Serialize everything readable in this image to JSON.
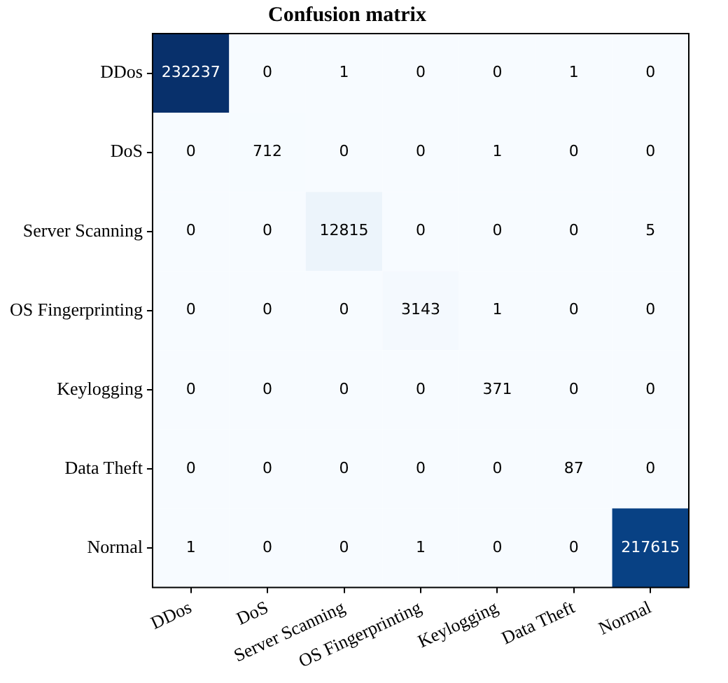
{
  "chart_data": {
    "type": "heatmap",
    "title": "Confusion matrix",
    "categories": [
      "DDos",
      "DoS",
      "Server Scanning",
      "OS Fingerprinting",
      "Keylogging",
      "Data Theft",
      "Normal"
    ],
    "y_categories": [
      "DDos",
      "DoS",
      "Server Scanning",
      "OS Fingerprinting",
      "Keylogging",
      "Data Theft",
      "Normal"
    ],
    "cells": [
      [
        232237,
        0,
        1,
        0,
        0,
        1,
        0
      ],
      [
        0,
        712,
        0,
        0,
        1,
        0,
        0
      ],
      [
        0,
        0,
        12815,
        0,
        0,
        0,
        5
      ],
      [
        0,
        0,
        0,
        3143,
        1,
        0,
        0
      ],
      [
        0,
        0,
        0,
        0,
        371,
        0,
        0
      ],
      [
        0,
        0,
        0,
        0,
        0,
        87,
        0
      ],
      [
        1,
        0,
        0,
        1,
        0,
        0,
        217615
      ]
    ],
    "data_labels": true
  }
}
